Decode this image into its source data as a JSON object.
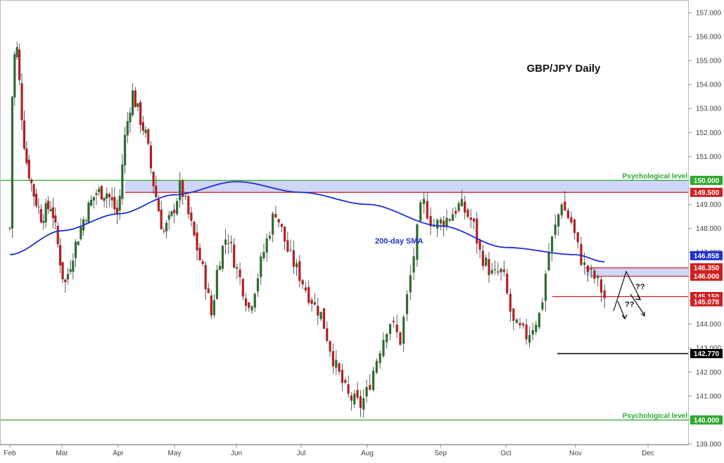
{
  "chart_data": {
    "type": "candlestick",
    "title": "GBP/JPY Daily",
    "xlabel": "",
    "ylabel": "",
    "ylim": [
      139.0,
      157.5
    ],
    "y_ticks": [
      "157.000",
      "156.000",
      "155.000",
      "154.000",
      "153.000",
      "152.000",
      "151.000",
      "150.000",
      "149.000",
      "148.000",
      "147.000",
      "146.000",
      "145.000",
      "144.000",
      "143.000",
      "142.000",
      "141.000",
      "140.000",
      "139.000"
    ],
    "months": [
      "Feb",
      "Mar",
      "Apr",
      "May",
      "Jun",
      "Jul",
      "Aug",
      "Sep",
      "Oct",
      "Nov",
      "Dec"
    ],
    "grid": false,
    "colors": {
      "up": "#2e6b2e",
      "down": "#b02020",
      "sma": "#1f2fd0",
      "support": "#2ea82e",
      "resistance": "#d02020",
      "zone": "#aab4f0"
    },
    "levels": [
      {
        "label": "150.000",
        "value": 150.0,
        "color": "#2ea82e",
        "text": "Psychological level"
      },
      {
        "label": "149.500",
        "value": 149.5,
        "color": "#d02020"
      },
      {
        "label": "146.858",
        "value": 146.858,
        "color": "#1f2fd0"
      },
      {
        "label": "146.350",
        "value": 146.35,
        "color": "#d02020"
      },
      {
        "label": "146.000",
        "value": 146.0,
        "color": "#d02020"
      },
      {
        "label": "145.150",
        "value": 145.15,
        "color": "#d02020"
      },
      {
        "label": "145.078",
        "value": 145.078,
        "color": "#d02020"
      },
      {
        "label": "142.770",
        "value": 142.77,
        "color": "#000000"
      },
      {
        "label": "140.000",
        "value": 140.0,
        "color": "#2ea82e",
        "text": "Psychological level"
      }
    ],
    "annotations": {
      "sma_label": "200-day SMA",
      "q1": "??",
      "q2": "??"
    },
    "sma": {
      "x_month": [
        0,
        1,
        2,
        3,
        4,
        5,
        6,
        7,
        8,
        9,
        9.4
      ],
      "y": [
        146.9,
        147.9,
        148.6,
        149.4,
        149.95,
        149.5,
        149.0,
        148.1,
        147.2,
        146.9,
        146.6
      ]
    },
    "price_path": {
      "x_month": [
        0,
        0.05,
        0.12,
        0.22,
        0.3,
        0.45,
        0.6,
        0.8,
        1.0,
        1.05,
        1.2,
        1.4,
        1.6,
        1.8,
        2.0,
        2.1,
        2.25,
        2.4,
        2.5,
        2.6,
        2.8,
        2.95,
        3.1,
        3.3,
        3.5,
        3.6,
        3.7,
        3.85,
        3.95,
        4.1,
        4.2,
        4.4,
        4.6,
        4.8,
        5.0,
        5.1,
        5.3,
        5.5,
        5.7,
        5.9,
        6.0,
        6.15,
        6.3,
        6.45,
        6.6,
        6.75,
        6.9,
        7.1,
        7.3,
        7.5,
        7.6,
        7.8,
        7.95,
        8.1,
        8.3,
        8.5,
        8.6,
        8.75,
        8.8,
        8.85,
        8.95,
        9.0,
        9.1,
        9.2,
        9.3,
        9.4
      ],
      "close": [
        148.0,
        154.0,
        156.0,
        153.0,
        151.0,
        149.5,
        148.5,
        149.0,
        146.2,
        145.6,
        147.0,
        148.5,
        149.5,
        149.5,
        148.5,
        151.5,
        153.7,
        152.5,
        151.8,
        150.2,
        147.8,
        148.5,
        149.8,
        147.8,
        145.8,
        144.3,
        146.5,
        147.8,
        146.8,
        145.5,
        144.6,
        146.8,
        148.8,
        147.0,
        145.9,
        145.3,
        144.4,
        142.4,
        141.0,
        140.6,
        141.2,
        142.8,
        144.2,
        143.3,
        146.2,
        149.2,
        148.1,
        148.4,
        149.0,
        148.2,
        147.0,
        146.0,
        146.2,
        144.0,
        143.5,
        144.5,
        146.8,
        148.5,
        149.2,
        148.7,
        148.2,
        147.5,
        146.5,
        146.1,
        145.8,
        145.1
      ]
    }
  }
}
